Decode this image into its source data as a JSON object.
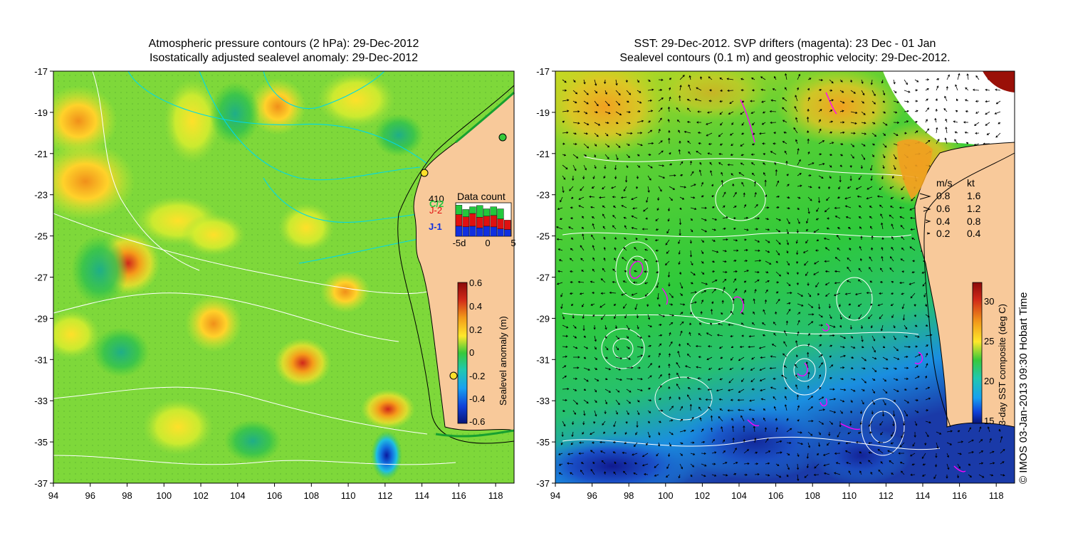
{
  "left_panel": {
    "title_line1": "Atmospheric pressure contours (2 hPa): 29-Dec-2012",
    "title_line2": "Isostatically adjusted sealevel anomaly: 29-Dec-2012",
    "data_count": {
      "title": "Data count",
      "max_label": "410",
      "missions": [
        "C/2",
        "J-2",
        "J-1"
      ],
      "mission_colors": [
        "#22c83c",
        "#e01010",
        "#1030e0"
      ],
      "x_ticks": [
        "-5d",
        "0",
        "5"
      ],
      "bars": [
        {
          "j1": 0.3,
          "j2": 0.35,
          "c2": 0.28
        },
        {
          "j1": 0.28,
          "j2": 0.3,
          "c2": 0.22
        },
        {
          "j1": 0.3,
          "j2": 0.38,
          "c2": 0.2
        },
        {
          "j1": 0.25,
          "j2": 0.32,
          "c2": 0.35
        },
        {
          "j1": 0.3,
          "j2": 0.3,
          "c2": 0.22
        },
        {
          "j1": 0.28,
          "j2": 0.34,
          "c2": 0.26
        },
        {
          "j1": 0.22,
          "j2": 0.3,
          "c2": 0.3
        },
        {
          "j1": 0.2,
          "j2": 0.28,
          "c2": 0.0
        }
      ]
    },
    "colorbar": {
      "label": "Sealevel anomaly (m)",
      "ticks": [
        "0.6",
        "0.4",
        "0.2",
        "0",
        "-0.2",
        "-0.4",
        "-0.6"
      ]
    }
  },
  "right_panel": {
    "title_line1": "SST: 29-Dec-2012. SVP drifters (magenta): 23 Dec - 01 Jan",
    "title_line2": "Sealevel contours (0.1 m) and geostrophic velocity: 29-Dec-2012.",
    "velocity_legend": {
      "header_ms": "m/s",
      "header_kt": "kt",
      "rows": [
        {
          "ms": "0.8",
          "kt": "1.6"
        },
        {
          "ms": "0.6",
          "kt": "1.2"
        },
        {
          "ms": "0.4",
          "kt": "0.8"
        },
        {
          "ms": "0.2",
          "kt": "0.4"
        }
      ]
    },
    "colorbar": {
      "label": "3-day SST composite (deg C)",
      "ticks": [
        "30",
        "25",
        "20",
        "15"
      ]
    }
  },
  "axes": {
    "y_ticks": [
      "-17",
      "-19",
      "-21",
      "-23",
      "-25",
      "-27",
      "-29",
      "-31",
      "-33",
      "-35",
      "-37"
    ],
    "x_ticks": [
      "94",
      "96",
      "98",
      "100",
      "102",
      "104",
      "106",
      "108",
      "110",
      "112",
      "114",
      "116",
      "118"
    ]
  },
  "credit": "© IMOS 03-Jan-2013 09:30 Hobart Time",
  "colors": {
    "land": "#f8c99a",
    "sla_mid": "#38c93a",
    "sst_mid": "#2ec93a",
    "drifters": "#ff00ff",
    "contours": "#ffffff",
    "pressure_contours": "#00d8e8"
  }
}
